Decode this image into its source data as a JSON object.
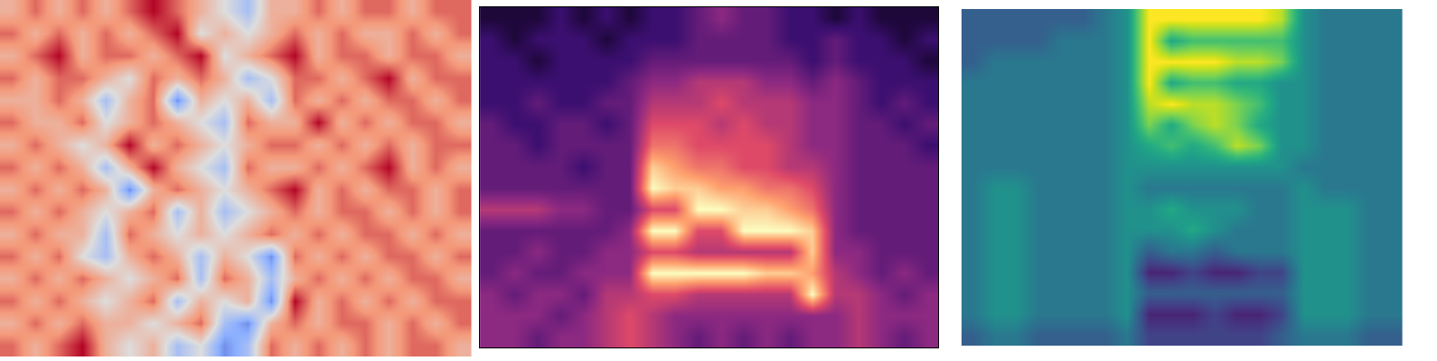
{
  "chart_data": [
    {
      "type": "heatmap",
      "color": "coolwarm",
      "tick_labels": false,
      "zlim": [
        -3,
        3
      ],
      "z": [
        [
          1,
          2,
          1,
          2,
          1,
          2,
          3,
          2,
          1,
          0,
          -1,
          1,
          1,
          2,
          1,
          2,
          2,
          1,
          2,
          2
        ],
        [
          2,
          1,
          2,
          1,
          2,
          1,
          2,
          3,
          0,
          1,
          0,
          1,
          2,
          1,
          2,
          1,
          1,
          2,
          1,
          2
        ],
        [
          1,
          2,
          3,
          1,
          2,
          2,
          1,
          2,
          3,
          0,
          1,
          2,
          3,
          1,
          2,
          2,
          1,
          2,
          2,
          1
        ],
        [
          2,
          1,
          2,
          2,
          1,
          0,
          2,
          1,
          2,
          1,
          -1,
          0,
          2,
          2,
          1,
          2,
          3,
          1,
          2,
          2
        ],
        [
          1,
          1,
          2,
          1,
          -1,
          1,
          2,
          -2,
          1,
          0,
          1,
          -1,
          2,
          1,
          2,
          1,
          2,
          2,
          1,
          2
        ],
        [
          2,
          1,
          1,
          2,
          0,
          1,
          2,
          1,
          0,
          -1,
          2,
          1,
          1,
          3,
          1,
          2,
          1,
          2,
          2,
          1
        ],
        [
          1,
          2,
          1,
          0,
          1,
          3,
          1,
          2,
          1,
          0,
          1,
          2,
          2,
          1,
          2,
          1,
          2,
          1,
          2,
          2
        ],
        [
          2,
          1,
          2,
          1,
          -1,
          1,
          3,
          1,
          0,
          -1,
          2,
          1,
          1,
          2,
          1,
          2,
          3,
          1,
          2,
          1
        ],
        [
          1,
          2,
          1,
          2,
          1,
          -2,
          1,
          2,
          1,
          0,
          1,
          2,
          3,
          1,
          2,
          1,
          2,
          2,
          1,
          2
        ],
        [
          2,
          1,
          2,
          1,
          0,
          1,
          2,
          -1,
          1,
          -1,
          0,
          1,
          2,
          1,
          2,
          2,
          1,
          2,
          1,
          2
        ],
        [
          1,
          2,
          1,
          1,
          -1,
          2,
          1,
          0,
          1,
          0,
          1,
          2,
          1,
          2,
          1,
          2,
          2,
          1,
          2,
          1
        ],
        [
          2,
          1,
          2,
          0,
          -1,
          1,
          2,
          1,
          -1,
          1,
          0,
          -2,
          2,
          1,
          2,
          1,
          2,
          2,
          1,
          2
        ],
        [
          1,
          2,
          1,
          2,
          1,
          0,
          1,
          2,
          -1,
          2,
          1,
          -1,
          1,
          2,
          1,
          2,
          1,
          2,
          2,
          1
        ],
        [
          2,
          1,
          2,
          1,
          0,
          1,
          2,
          -1,
          1,
          0,
          1,
          -2,
          3,
          1,
          2,
          1,
          2,
          1,
          2,
          2
        ],
        [
          1,
          2,
          1,
          2,
          1,
          1,
          0,
          1,
          2,
          -1,
          -2,
          1,
          2,
          1,
          2,
          2,
          1,
          2,
          1,
          2
        ],
        [
          2,
          1,
          2,
          3,
          1,
          0,
          1,
          -1,
          0,
          -2,
          -1,
          2,
          1,
          2,
          1,
          2,
          1,
          2,
          2,
          1
        ]
      ]
    },
    {
      "type": "heatmap",
      "color": "magma",
      "tick_labels": false,
      "zlim": [
        0,
        10
      ],
      "z": [
        [
          1,
          1,
          1,
          2,
          1,
          2,
          1,
          2,
          2,
          3,
          4,
          3,
          3,
          2,
          2,
          1,
          2,
          1,
          1,
          1
        ],
        [
          2,
          1,
          2,
          2,
          2,
          1,
          2,
          2,
          2,
          3,
          3,
          3,
          3,
          2,
          2,
          3,
          2,
          2,
          1,
          2
        ],
        [
          2,
          2,
          1,
          2,
          2,
          2,
          2,
          3,
          3,
          3,
          3,
          3,
          3,
          3,
          2,
          3,
          2,
          2,
          2,
          1
        ],
        [
          2,
          2,
          2,
          2,
          2,
          2,
          3,
          4,
          4,
          5,
          5,
          5,
          4,
          4,
          3,
          4,
          3,
          2,
          2,
          2
        ],
        [
          2,
          2,
          3,
          2,
          2,
          3,
          3,
          5,
          5,
          5,
          6,
          5,
          5,
          5,
          4,
          4,
          3,
          2,
          3,
          2
        ],
        [
          3,
          2,
          2,
          3,
          3,
          2,
          3,
          6,
          6,
          6,
          5,
          6,
          5,
          5,
          4,
          4,
          3,
          3,
          2,
          3
        ],
        [
          3,
          3,
          2,
          3,
          3,
          3,
          3,
          7,
          7,
          6,
          6,
          6,
          6,
          5,
          4,
          4,
          3,
          3,
          3,
          2
        ],
        [
          3,
          3,
          3,
          3,
          2,
          3,
          3,
          9,
          8,
          7,
          7,
          6,
          6,
          5,
          5,
          4,
          3,
          3,
          3,
          3
        ],
        [
          3,
          3,
          3,
          3,
          3,
          3,
          3,
          10,
          9,
          9,
          8,
          8,
          7,
          7,
          6,
          4,
          3,
          3,
          3,
          3
        ],
        [
          5,
          5,
          5,
          4,
          4,
          3,
          3,
          6,
          6,
          10,
          10,
          9,
          9,
          8,
          7,
          4,
          3,
          3,
          3,
          3
        ],
        [
          3,
          3,
          3,
          3,
          3,
          3,
          4,
          10,
          10,
          6,
          6,
          10,
          10,
          10,
          9,
          4,
          3,
          3,
          3,
          3
        ],
        [
          3,
          3,
          4,
          3,
          3,
          4,
          4,
          6,
          6,
          5,
          5,
          5,
          5,
          5,
          9,
          4,
          4,
          3,
          3,
          3
        ],
        [
          3,
          4,
          3,
          3,
          4,
          4,
          4,
          10,
          10,
          10,
          10,
          10,
          9,
          9,
          8,
          5,
          4,
          3,
          4,
          3
        ],
        [
          4,
          3,
          4,
          4,
          3,
          5,
          5,
          6,
          6,
          5,
          5,
          5,
          5,
          5,
          10,
          5,
          5,
          4,
          3,
          4
        ],
        [
          4,
          4,
          4,
          3,
          4,
          5,
          6,
          5,
          4,
          4,
          4,
          4,
          4,
          4,
          4,
          4,
          5,
          4,
          4,
          4
        ],
        [
          4,
          4,
          3,
          4,
          4,
          5,
          6,
          5,
          4,
          3,
          4,
          3,
          4,
          3,
          4,
          4,
          5,
          4,
          3,
          4
        ]
      ]
    },
    {
      "type": "heatmap",
      "color": "viridis",
      "tick_labels": false,
      "zlim": [
        0,
        10
      ],
      "z": [
        [
          3,
          3,
          3,
          3,
          3,
          3,
          4,
          5,
          10,
          10,
          10,
          10,
          10,
          10,
          9,
          5,
          4,
          4,
          4,
          4
        ],
        [
          3,
          3,
          3,
          3,
          4,
          4,
          4,
          5,
          10,
          6,
          7,
          7,
          7,
          7,
          7,
          5,
          4,
          4,
          4,
          4
        ],
        [
          3,
          4,
          4,
          4,
          4,
          4,
          4,
          5,
          10,
          10,
          10,
          10,
          9,
          9,
          8,
          5,
          4,
          4,
          4,
          4
        ],
        [
          4,
          4,
          4,
          4,
          4,
          4,
          4,
          5,
          10,
          6,
          7,
          7,
          6,
          6,
          5,
          5,
          4,
          4,
          4,
          4
        ],
        [
          4,
          4,
          4,
          4,
          4,
          4,
          4,
          5,
          9,
          10,
          9,
          9,
          8,
          7,
          5,
          5,
          4,
          4,
          4,
          4
        ],
        [
          4,
          4,
          4,
          4,
          4,
          4,
          4,
          5,
          8,
          6,
          8,
          9,
          8,
          6,
          5,
          5,
          4,
          4,
          4,
          4
        ],
        [
          4,
          4,
          4,
          4,
          4,
          4,
          4,
          5,
          6,
          7,
          6,
          7,
          9,
          8,
          5,
          5,
          4,
          4,
          4,
          4
        ],
        [
          4,
          4,
          4,
          4,
          4,
          4,
          4,
          5,
          5,
          5,
          5,
          5,
          5,
          5,
          5,
          4,
          4,
          4,
          4,
          4
        ],
        [
          4,
          5,
          5,
          4,
          4,
          4,
          4,
          5,
          4,
          4,
          4,
          4,
          4,
          4,
          4,
          5,
          4,
          4,
          4,
          4
        ],
        [
          4,
          5,
          5,
          4,
          4,
          4,
          4,
          5,
          5,
          6,
          5,
          5,
          5,
          4,
          4,
          5,
          5,
          5,
          4,
          4
        ],
        [
          4,
          5,
          5,
          4,
          4,
          4,
          4,
          5,
          5,
          5,
          6,
          5,
          4,
          4,
          4,
          5,
          5,
          5,
          4,
          4
        ],
        [
          4,
          5,
          5,
          4,
          4,
          4,
          4,
          5,
          3,
          4,
          4,
          3,
          4,
          4,
          4,
          5,
          5,
          5,
          4,
          4
        ],
        [
          4,
          5,
          5,
          4,
          4,
          4,
          4,
          5,
          1,
          1,
          2,
          1,
          1,
          2,
          2,
          5,
          5,
          5,
          4,
          4
        ],
        [
          4,
          5,
          5,
          4,
          4,
          4,
          4,
          5,
          3,
          3,
          3,
          3,
          3,
          3,
          3,
          5,
          5,
          5,
          4,
          4
        ],
        [
          4,
          5,
          5,
          4,
          4,
          4,
          4,
          5,
          1,
          1,
          1,
          2,
          1,
          1,
          2,
          5,
          5,
          5,
          4,
          4
        ],
        [
          3,
          4,
          4,
          3,
          3,
          3,
          3,
          4,
          2,
          2,
          2,
          2,
          2,
          2,
          3,
          4,
          4,
          4,
          3,
          3
        ]
      ]
    }
  ]
}
